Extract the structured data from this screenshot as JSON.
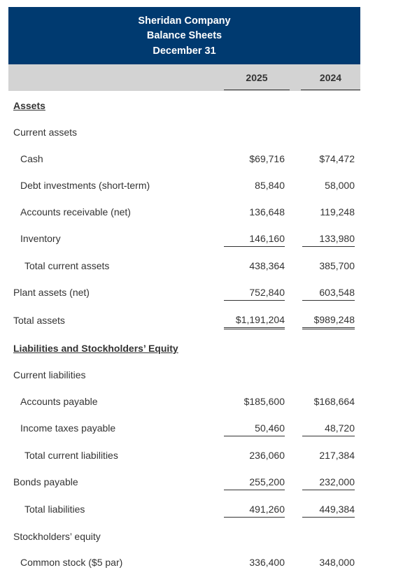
{
  "header": {
    "company": "Sheridan Company",
    "statement": "Balance Sheets",
    "date": "December 31"
  },
  "years": [
    "2025",
    "2024"
  ],
  "sections": {
    "assets": "Assets",
    "current_assets": "Current assets",
    "liab_equity": "Liabilities and Stockholders’ Equity",
    "current_liabilities": "Current liabilities",
    "stockholders_equity": "Stockholders’ equity"
  },
  "rows": {
    "cash": {
      "label": "Cash",
      "v2025": "$69,716",
      "v2024": "$74,472"
    },
    "debt_investments": {
      "label": "Debt investments (short-term)",
      "v2025": "85,840",
      "v2024": "58,000"
    },
    "accounts_receivable": {
      "label": "Accounts receivable (net)",
      "v2025": "136,648",
      "v2024": "119,248"
    },
    "inventory": {
      "label": "Inventory",
      "v2025": "146,160",
      "v2024": "133,980"
    },
    "total_current_assets": {
      "label": "Total current assets",
      "v2025": "438,364",
      "v2024": "385,700"
    },
    "plant_assets": {
      "label": "Plant assets (net)",
      "v2025": "752,840",
      "v2024": "603,548"
    },
    "total_assets": {
      "label": "Total assets",
      "v2025": "$1,191,204",
      "v2024": "$989,248"
    },
    "accounts_payable": {
      "label": "Accounts payable",
      "v2025": "$185,600",
      "v2024": "$168,664"
    },
    "income_taxes_payable": {
      "label": "Income taxes payable",
      "v2025": "50,460",
      "v2024": "48,720"
    },
    "total_current_liabilities": {
      "label": "Total current liabilities",
      "v2025": "236,060",
      "v2024": "217,384"
    },
    "bonds_payable": {
      "label": "Bonds payable",
      "v2025": "255,200",
      "v2024": "232,000"
    },
    "total_liabilities": {
      "label": "Total liabilities",
      "v2025": "491,260",
      "v2024": "449,384"
    },
    "common_stock": {
      "label": "Common stock ($5 par)",
      "v2025": "336,400",
      "v2024": "348,000"
    }
  }
}
